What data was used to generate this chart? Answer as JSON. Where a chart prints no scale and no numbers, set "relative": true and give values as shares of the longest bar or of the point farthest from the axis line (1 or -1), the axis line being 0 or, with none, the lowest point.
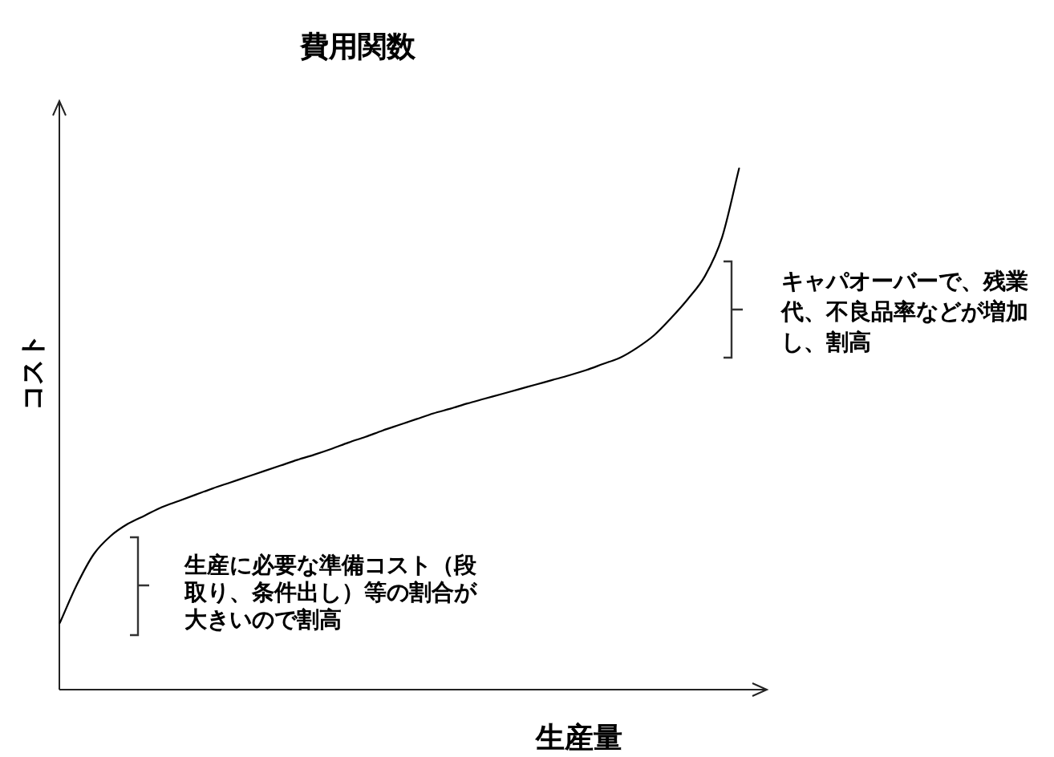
{
  "chart_data": {
    "type": "line",
    "title": "費用関数",
    "xlabel": "生産量",
    "ylabel": "コスト",
    "relative": true,
    "categories": [
      null,
      null,
      null,
      null,
      null,
      null,
      null,
      null,
      null,
      null,
      null,
      null,
      null,
      null,
      null,
      null,
      null,
      null,
      null,
      null,
      null,
      null,
      null,
      null,
      null,
      null,
      null,
      null,
      null,
      null,
      null,
      null,
      null,
      null,
      null,
      null,
      null,
      null,
      null,
      null,
      null
    ],
    "values": [
      0.128,
      0.201,
      0.26,
      0.295,
      0.318,
      0.334,
      0.35,
      0.362,
      0.374,
      0.386,
      0.397,
      0.408,
      0.419,
      0.43,
      0.441,
      0.451,
      0.462,
      0.474,
      0.485,
      0.497,
      0.508,
      0.519,
      0.53,
      0.539,
      0.549,
      0.558,
      0.567,
      0.576,
      0.585,
      0.594,
      0.603,
      0.613,
      0.625,
      0.637,
      0.656,
      0.68,
      0.713,
      0.75,
      0.794,
      0.868,
      1
    ],
    "color": "#000000",
    "annotations": [
      "生産に必要な準備コスト（段取り、条件出し）等の割合が大きいので割高",
      "キャパオーバーで、残業代、不良品率などが増加し、割高"
    ]
  }
}
